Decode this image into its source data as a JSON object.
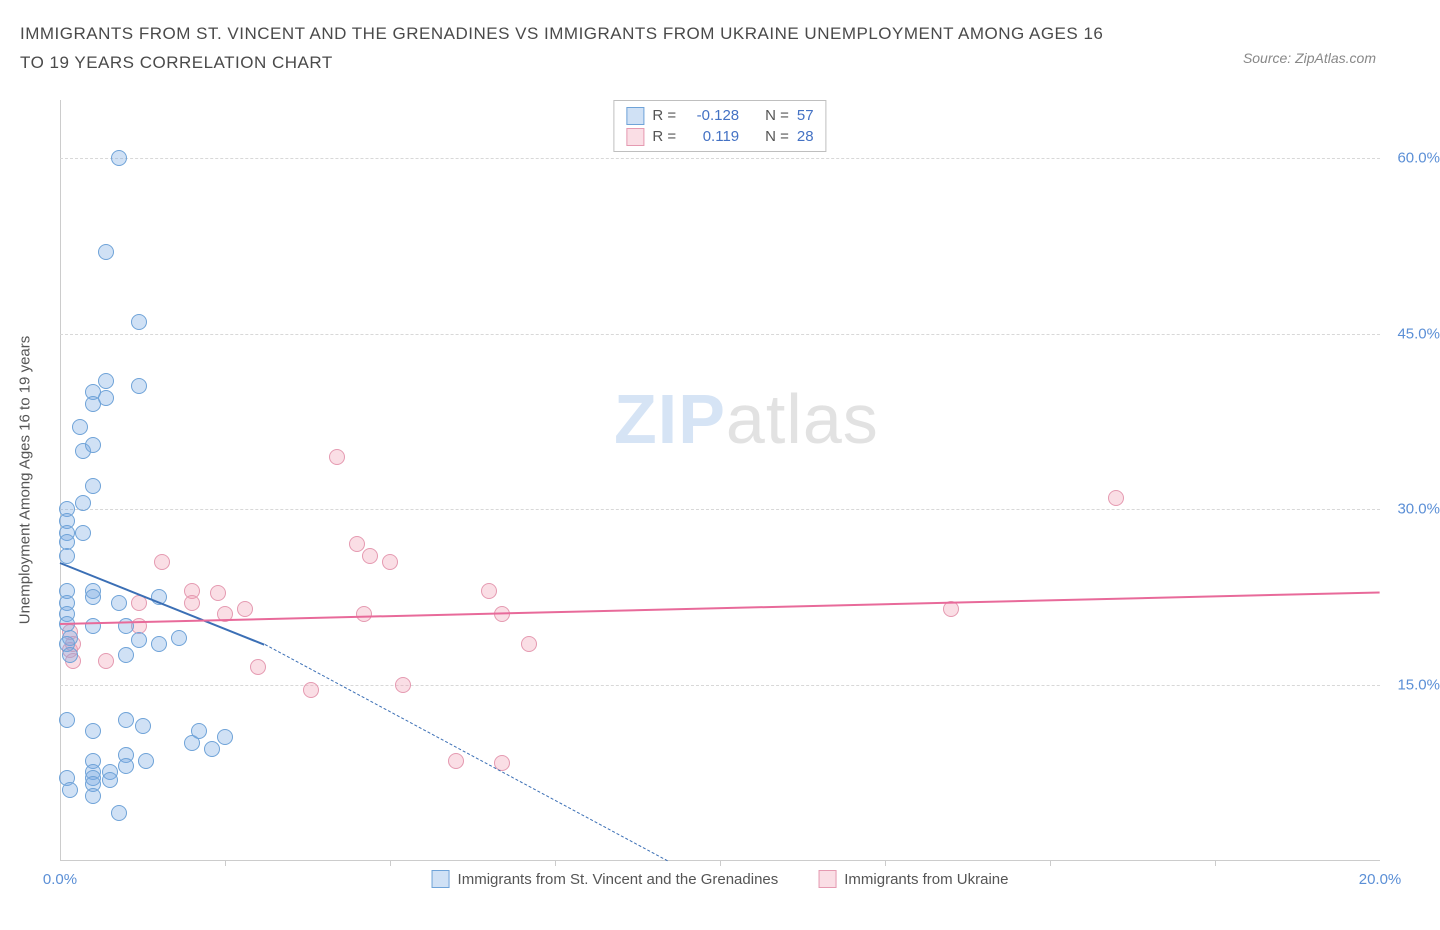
{
  "title": "IMMIGRANTS FROM ST. VINCENT AND THE GRENADINES VS IMMIGRANTS FROM UKRAINE UNEMPLOYMENT AMONG AGES 16 TO 19 YEARS CORRELATION CHART",
  "source": "Source: ZipAtlas.com",
  "y_axis_label": "Unemployment Among Ages 16 to 19 years",
  "watermark_a": "ZIP",
  "watermark_b": "atlas",
  "chart": {
    "type": "scatter",
    "xlim": [
      0,
      20
    ],
    "ylim": [
      0,
      65
    ],
    "x_ticks": [
      0,
      20
    ],
    "x_minor_ticks": [
      2.5,
      5,
      7.5,
      10,
      12.5,
      15,
      17.5
    ],
    "y_gridlines": [
      15,
      30,
      45,
      60
    ],
    "x_tick_labels": {
      "0": "0.0%",
      "20": "20.0%"
    },
    "y_tick_labels": {
      "15": "15.0%",
      "30": "30.0%",
      "45": "45.0%",
      "60": "60.0%"
    },
    "background_color": "#ffffff",
    "grid_color": "#d8d8d8",
    "axis_color": "#cccccc",
    "tick_label_color": "#5b8fd6",
    "axis_label_color": "#555555",
    "marker_radius": 8,
    "marker_stroke_width": 1.5
  },
  "series": {
    "blue": {
      "label": "Immigrants from St. Vincent and the Grenadines",
      "fill": "rgba(120,170,225,0.35)",
      "stroke": "#6fa3d8",
      "R_label": "R =",
      "R": "-0.128",
      "N_label": "N =",
      "N": "57",
      "trend": {
        "x1": 0,
        "y1": 25.5,
        "x2": 3.1,
        "y2": 18.5,
        "dash_x2": 9.2,
        "dash_y2": 0,
        "color": "#3b6fb5"
      },
      "points": [
        [
          0.1,
          30
        ],
        [
          0.1,
          29
        ],
        [
          0.1,
          28
        ],
        [
          0.1,
          27.2
        ],
        [
          0.1,
          26
        ],
        [
          0.1,
          23
        ],
        [
          0.1,
          22
        ],
        [
          0.1,
          21
        ],
        [
          0.1,
          20.2
        ],
        [
          0.15,
          19
        ],
        [
          0.1,
          18.5
        ],
        [
          0.15,
          17.5
        ],
        [
          0.1,
          12
        ],
        [
          0.1,
          7
        ],
        [
          0.15,
          6
        ],
        [
          0.3,
          37
        ],
        [
          0.35,
          35
        ],
        [
          0.35,
          30.5
        ],
        [
          0.35,
          28
        ],
        [
          0.5,
          40
        ],
        [
          0.5,
          39
        ],
        [
          0.5,
          35.5
        ],
        [
          0.5,
          32
        ],
        [
          0.5,
          23
        ],
        [
          0.5,
          22.5
        ],
        [
          0.5,
          20
        ],
        [
          0.5,
          11
        ],
        [
          0.5,
          8.5
        ],
        [
          0.5,
          7.5
        ],
        [
          0.5,
          7
        ],
        [
          0.5,
          6.5
        ],
        [
          0.5,
          5.5
        ],
        [
          0.7,
          52
        ],
        [
          0.7,
          41
        ],
        [
          0.7,
          39.5
        ],
        [
          0.75,
          7.5
        ],
        [
          0.75,
          6.8
        ],
        [
          0.9,
          60
        ],
        [
          0.9,
          22
        ],
        [
          0.9,
          4
        ],
        [
          1.0,
          20
        ],
        [
          1.0,
          17.5
        ],
        [
          1.0,
          12
        ],
        [
          1.0,
          9
        ],
        [
          1.0,
          8
        ],
        [
          1.2,
          46
        ],
        [
          1.2,
          40.5
        ],
        [
          1.2,
          18.8
        ],
        [
          1.25,
          11.5
        ],
        [
          1.3,
          8.5
        ],
        [
          1.5,
          22.5
        ],
        [
          1.5,
          18.5
        ],
        [
          1.8,
          19
        ],
        [
          2.0,
          10
        ],
        [
          2.1,
          11
        ],
        [
          2.3,
          9.5
        ],
        [
          2.5,
          10.5
        ]
      ]
    },
    "pink": {
      "label": "Immigrants from Ukraine",
      "fill": "rgba(240,160,180,0.35)",
      "stroke": "#e59ab1",
      "R_label": "R =",
      "R": "0.119",
      "N_label": "N =",
      "N": "28",
      "trend": {
        "x1": 0,
        "y1": 20.3,
        "x2": 20,
        "y2": 23.0,
        "color": "#e86a9a"
      },
      "points": [
        [
          0.15,
          19.5
        ],
        [
          0.15,
          18
        ],
        [
          0.2,
          18.5
        ],
        [
          0.2,
          17
        ],
        [
          0.7,
          17
        ],
        [
          1.2,
          22
        ],
        [
          1.2,
          20
        ],
        [
          1.55,
          25.5
        ],
        [
          2.0,
          23
        ],
        [
          2.0,
          22
        ],
        [
          2.4,
          22.8
        ],
        [
          2.5,
          21
        ],
        [
          2.8,
          21.5
        ],
        [
          3.0,
          16.5
        ],
        [
          3.8,
          14.5
        ],
        [
          4.2,
          34.5
        ],
        [
          4.5,
          27
        ],
        [
          4.7,
          26
        ],
        [
          4.6,
          21
        ],
        [
          5.0,
          25.5
        ],
        [
          5.2,
          15
        ],
        [
          6.0,
          8.5
        ],
        [
          6.7,
          8.3
        ],
        [
          6.5,
          23
        ],
        [
          6.7,
          21
        ],
        [
          7.1,
          18.5
        ],
        [
          13.5,
          21.5
        ],
        [
          16.0,
          31
        ]
      ]
    }
  }
}
